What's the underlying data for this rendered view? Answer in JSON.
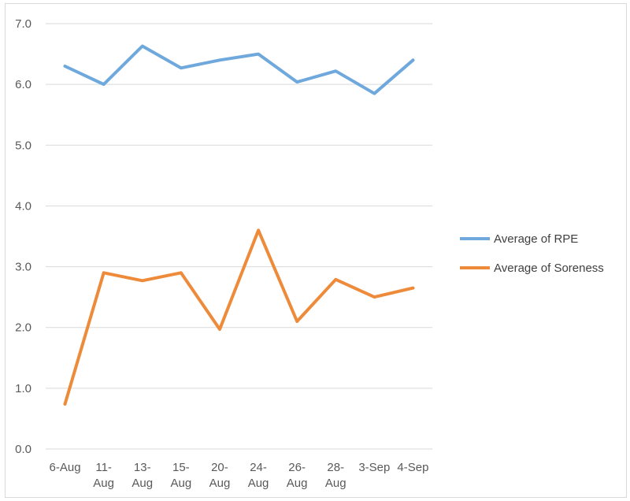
{
  "chart_data": {
    "type": "line",
    "categories": [
      "6-Aug",
      "11-Aug",
      "13-Aug",
      "15-Aug",
      "20-Aug",
      "24-Aug",
      "26-Aug",
      "28-Aug",
      "3-Sep",
      "4-Sep"
    ],
    "series": [
      {
        "name": "Average of RPE",
        "color": "#6fa8dc",
        "values": [
          6.3,
          6.0,
          6.63,
          6.27,
          6.4,
          6.5,
          6.04,
          6.22,
          5.85,
          6.4
        ]
      },
      {
        "name": "Average of Soreness",
        "color": "#ed8b3a",
        "values": [
          0.74,
          2.9,
          2.77,
          2.9,
          1.97,
          3.6,
          2.1,
          2.79,
          2.5,
          2.65
        ]
      }
    ],
    "yticks": [
      "0.0",
      "1.0",
      "2.0",
      "3.0",
      "4.0",
      "5.0",
      "6.0",
      "7.0"
    ],
    "ylim": [
      0,
      7
    ],
    "grid": true,
    "legend_position": "right"
  }
}
